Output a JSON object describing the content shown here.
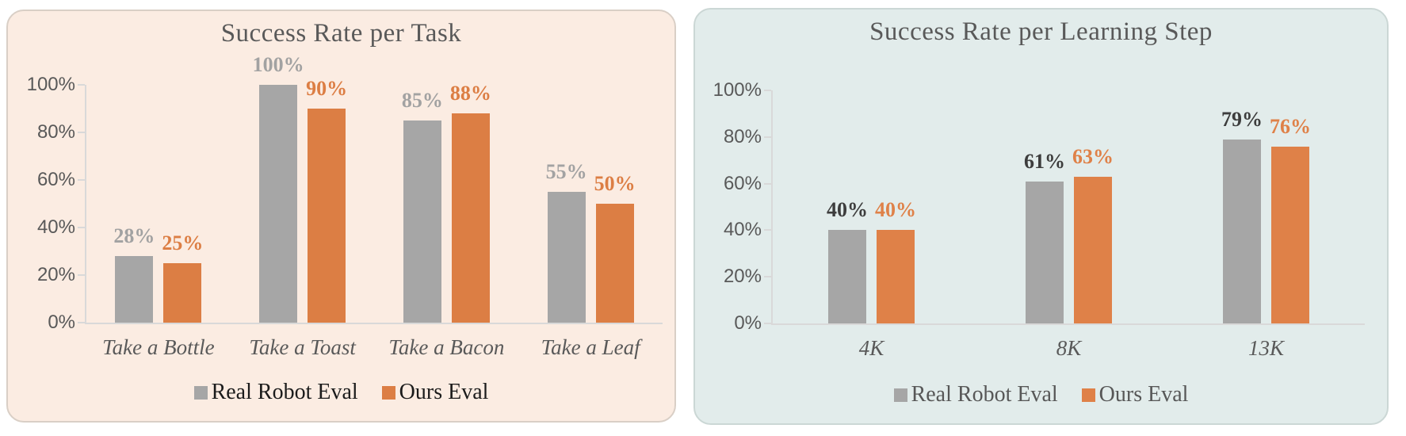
{
  "page": {
    "background": "#ffffff"
  },
  "chart_data": [
    {
      "type": "bar",
      "title": "Success Rate per Task",
      "title_color": "#595959",
      "categories": [
        "Take a Bottle",
        "Take a Toast",
        "Take a Bacon",
        "Take a Leaf"
      ],
      "series": [
        {
          "name": "Real Robot Eval",
          "color": "#a6a6a6",
          "label_color": "#a2a2a2",
          "values": [
            28,
            100,
            85,
            55
          ]
        },
        {
          "name": "Ours Eval",
          "color": "#dc7e44",
          "label_color": "#dc7e44",
          "values": [
            25,
            90,
            88,
            50
          ]
        }
      ],
      "value_suffix": "%",
      "ylabel_ticks": [
        "100%",
        "80%",
        "60%",
        "40%",
        "20%",
        "0%"
      ],
      "ylim": [
        0,
        100
      ],
      "grid": false,
      "legend_position": "bottom",
      "legend_text_color": "#1b1b1b",
      "tick_label_color": "#595959",
      "category_label_color": "#595959",
      "axis_color": "#d9d9d9",
      "panel_bg": "#fbece2",
      "panel_border": "#d9cfc6"
    },
    {
      "type": "bar",
      "title": "Success Rate per Learning Step",
      "title_color": "#595959",
      "categories": [
        "4K",
        "8K",
        "13K"
      ],
      "series": [
        {
          "name": "Real Robot Eval",
          "color": "#a6a6a6",
          "label_color": "#3d3d3d",
          "values": [
            40,
            61,
            79
          ]
        },
        {
          "name": "Ours Eval",
          "color": "#df8148",
          "label_color": "#df8148",
          "values": [
            40,
            63,
            76
          ]
        }
      ],
      "value_suffix": "%",
      "ylabel_ticks": [
        "100%",
        "80%",
        "60%",
        "40%",
        "20%",
        "0%"
      ],
      "ylim": [
        0,
        100
      ],
      "grid": false,
      "legend_position": "bottom",
      "legend_text_color": "#575757",
      "tick_label_color": "#595959",
      "category_label_color": "#595959",
      "axis_color": "#d9d9d9",
      "panel_bg": "#e2eceb",
      "panel_border": "#cbd7d5"
    }
  ]
}
